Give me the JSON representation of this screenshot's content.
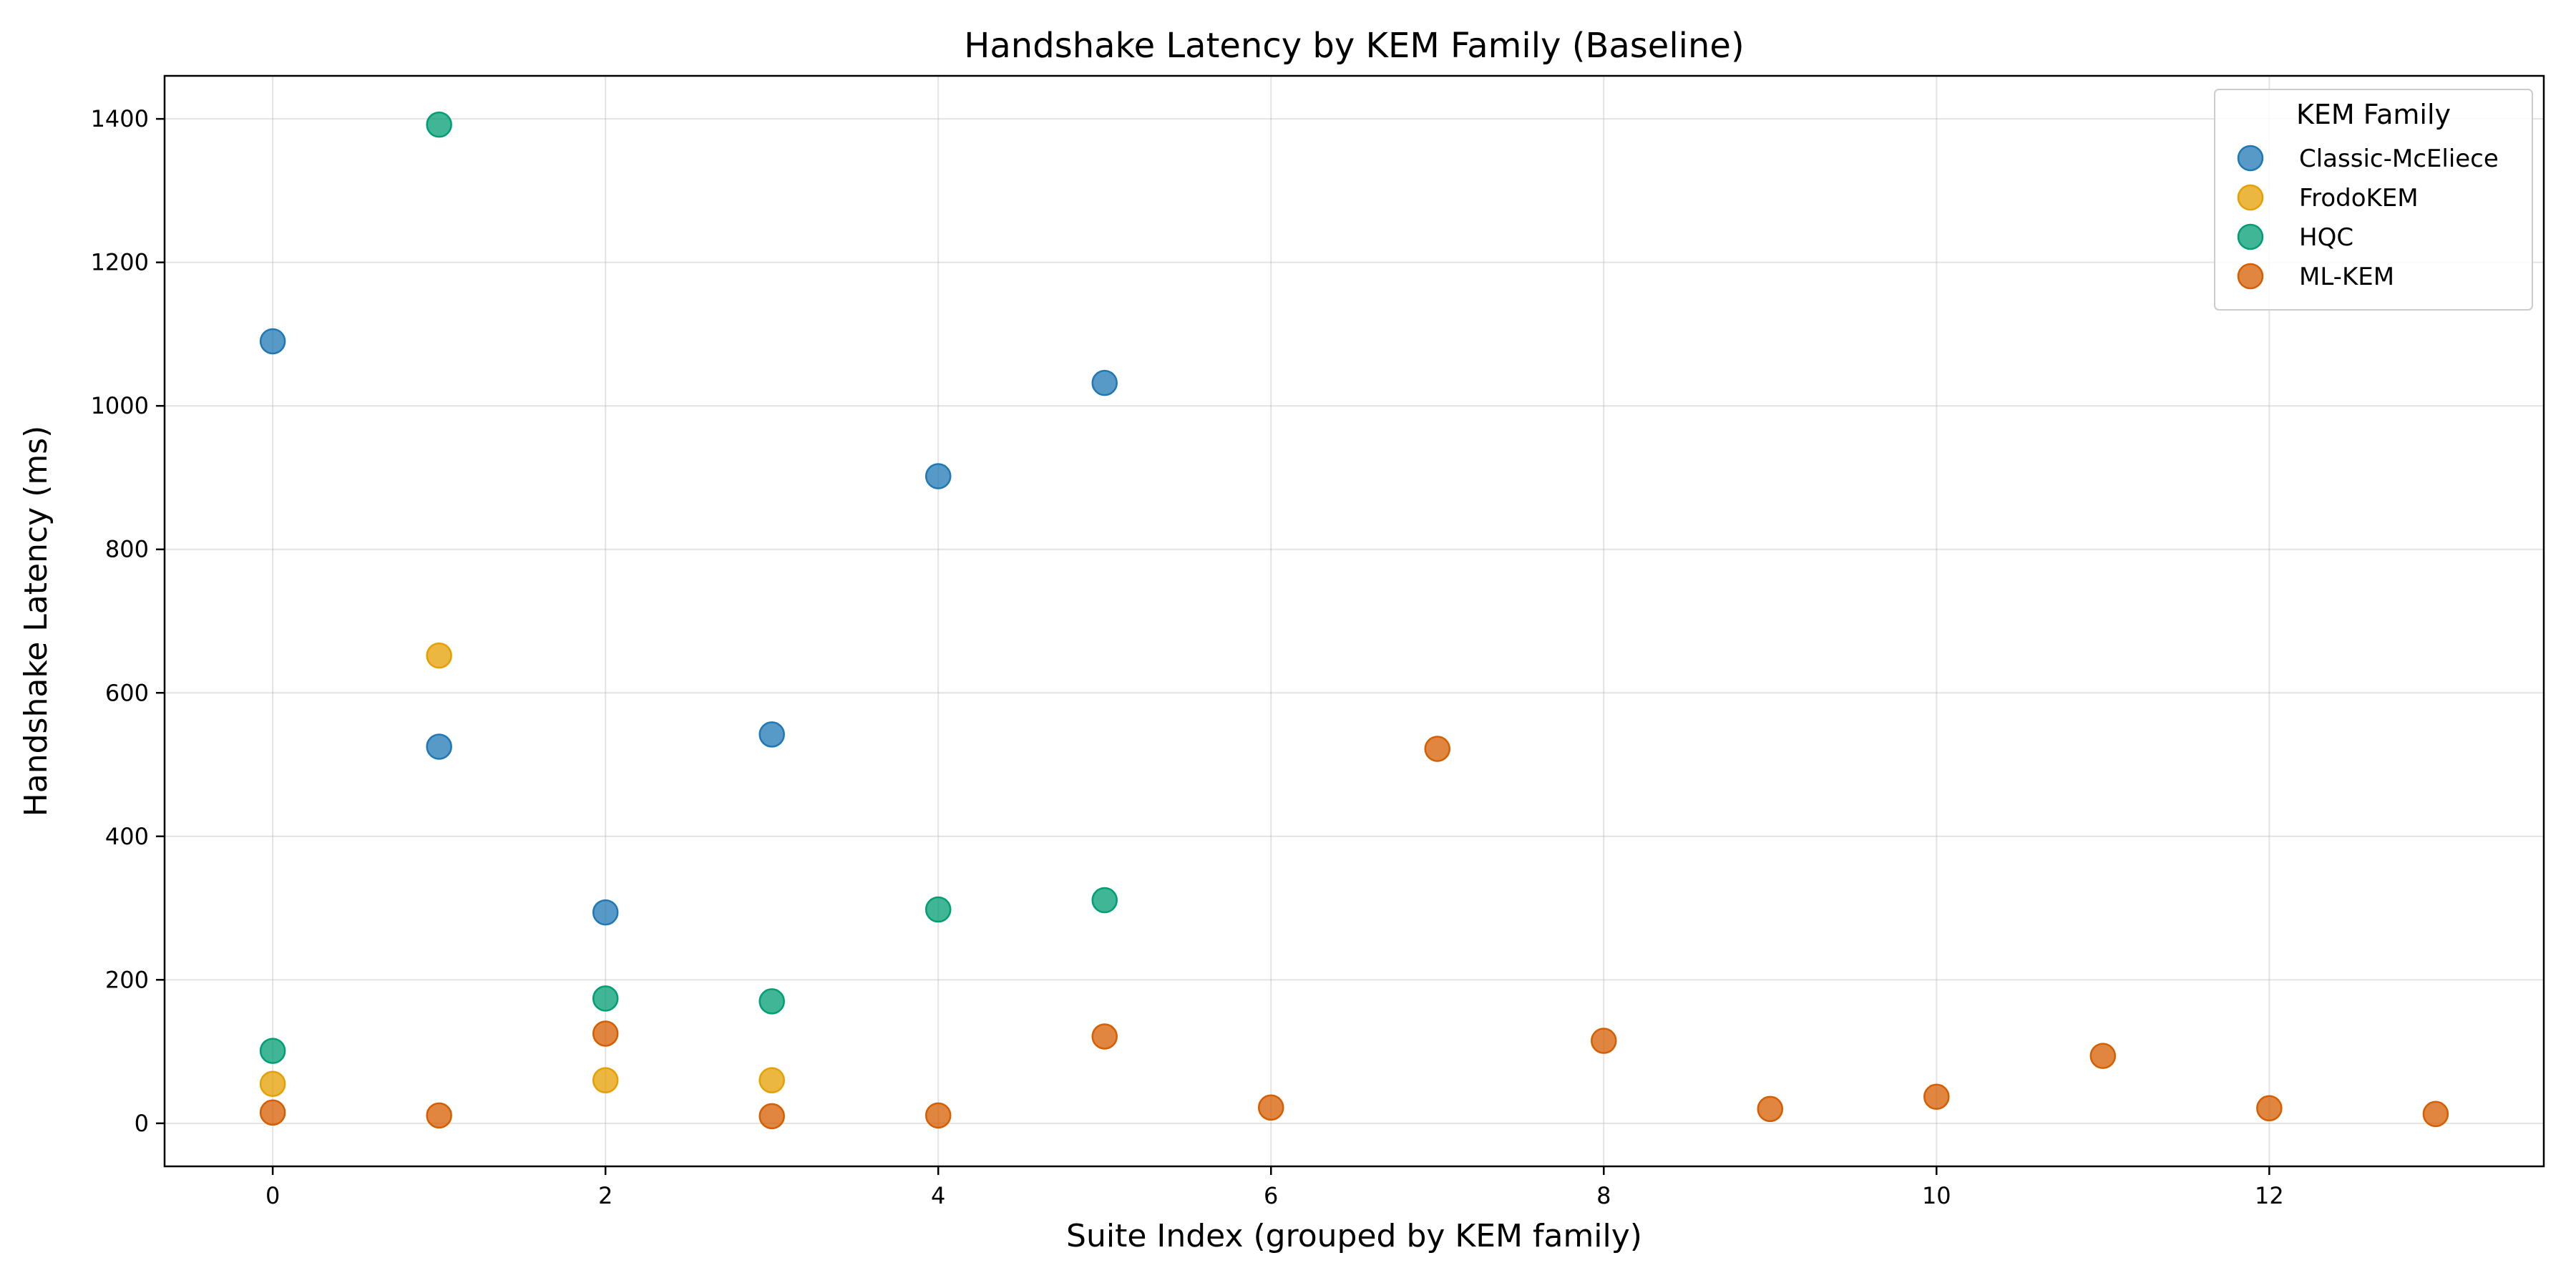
{
  "chart_data": {
    "type": "scatter",
    "title": "Handshake Latency by KEM Family (Baseline)",
    "xlabel": "Suite Index (grouped by KEM family)",
    "ylabel": "Handshake Latency (ms)",
    "xlim": [
      -0.65,
      13.65
    ],
    "ylim": [
      -60,
      1460
    ],
    "xticks": [
      0,
      2,
      4,
      6,
      8,
      10,
      12
    ],
    "yticks": [
      0,
      200,
      400,
      600,
      800,
      1000,
      1200,
      1400
    ],
    "grid": true,
    "legend": {
      "title": "KEM Family",
      "position": "top-right"
    },
    "series": [
      {
        "name": "Classic-McEliece",
        "color": "#1f77b4",
        "points": [
          [
            0,
            1090
          ],
          [
            1,
            525
          ],
          [
            2,
            294
          ],
          [
            3,
            542
          ],
          [
            4,
            902
          ],
          [
            5,
            1032
          ]
        ]
      },
      {
        "name": "FrodoKEM",
        "color": "#e69f00",
        "points": [
          [
            0,
            55
          ],
          [
            1,
            652
          ],
          [
            2,
            60
          ],
          [
            3,
            60
          ]
        ]
      },
      {
        "name": "HQC",
        "color": "#009e73",
        "points": [
          [
            0,
            101
          ],
          [
            1,
            1392
          ],
          [
            2,
            174
          ],
          [
            3,
            170
          ],
          [
            4,
            298
          ],
          [
            5,
            311
          ]
        ]
      },
      {
        "name": "ML-KEM",
        "color": "#d55e00",
        "points": [
          [
            0,
            15
          ],
          [
            1,
            11
          ],
          [
            2,
            125
          ],
          [
            3,
            10
          ],
          [
            4,
            11
          ],
          [
            5,
            121
          ],
          [
            6,
            22
          ],
          [
            7,
            522
          ],
          [
            8,
            115
          ],
          [
            9,
            20
          ],
          [
            10,
            37
          ],
          [
            11,
            94
          ],
          [
            12,
            21
          ],
          [
            13,
            13
          ]
        ]
      }
    ]
  }
}
